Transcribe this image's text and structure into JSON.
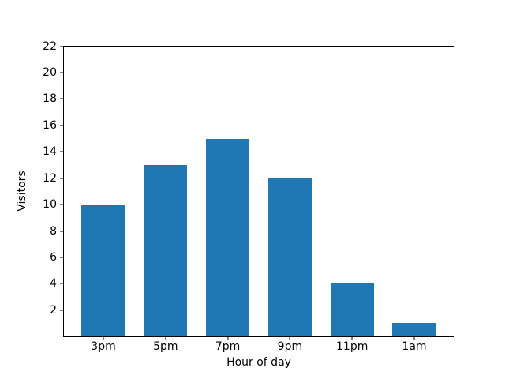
{
  "chart_data": {
    "type": "bar",
    "categories": [
      "3pm",
      "5pm",
      "7pm",
      "9pm",
      "11pm",
      "1am"
    ],
    "values": [
      10,
      13,
      15,
      12,
      4,
      1
    ],
    "title": "",
    "xlabel": "Hour of day",
    "ylabel": "Visitors",
    "ylim": [
      0,
      22
    ],
    "yticks": [
      2,
      4,
      6,
      8,
      10,
      12,
      14,
      16,
      18,
      20,
      22
    ],
    "bar_color": "#1f77b4",
    "background_color": "#ffffff",
    "axis_color": "#000000",
    "bar_width_fraction": 0.7,
    "x_margin_fraction": 0.05,
    "grid": false,
    "legend": null
  }
}
